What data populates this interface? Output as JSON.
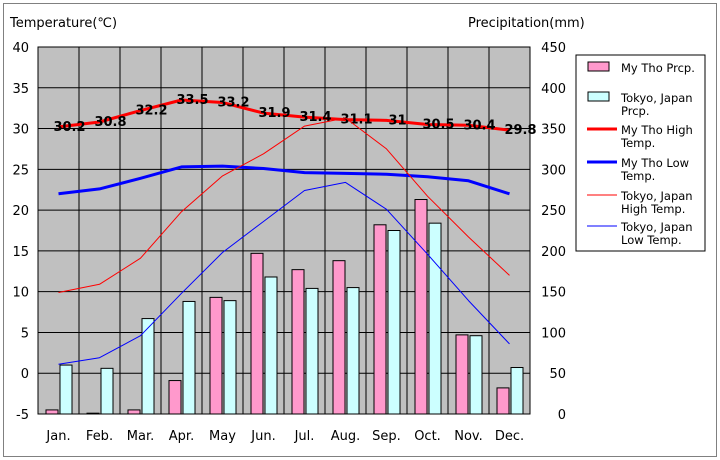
{
  "chart_data": {
    "type": "bar+line",
    "categories": [
      "Jan.",
      "Feb.",
      "Mar.",
      "Apr.",
      "May",
      "Jun.",
      "Jul.",
      "Aug.",
      "Sep.",
      "Oct.",
      "Nov.",
      "Dec."
    ],
    "left_axis": {
      "title": "Temperature(℃)",
      "min": -5,
      "max": 40,
      "step": 5
    },
    "right_axis": {
      "title": "Precipitation(mm)",
      "min": 0,
      "max": 450,
      "step": 50
    },
    "bars": [
      {
        "name": "My Tho Prcp.",
        "color": "#ff99cc",
        "axis": "right",
        "values": [
          5,
          1,
          5,
          41,
          143,
          197,
          177,
          188,
          232,
          263,
          97,
          32
        ]
      },
      {
        "name": "Tokyo, Japan Prcp.",
        "color": "#ccffff",
        "axis": "right",
        "values": [
          60,
          56,
          117,
          138,
          139,
          168,
          154,
          155,
          225,
          234,
          96,
          57
        ]
      }
    ],
    "lines": [
      {
        "name": "My Tho High Temp.",
        "color": "#ff0000",
        "width": 3,
        "axis": "left",
        "values": [
          30.2,
          30.8,
          32.2,
          33.5,
          33.2,
          31.9,
          31.4,
          31.1,
          31,
          30.5,
          30.4,
          29.8
        ],
        "labels": [
          "30.2",
          "30.8",
          "32.2",
          "33.5",
          "33.2",
          "31.9",
          "31.4",
          "31.1",
          "31",
          "30.5",
          "30.4",
          "29.8"
        ]
      },
      {
        "name": "My Tho Low Temp.",
        "color": "#0000ff",
        "width": 3,
        "axis": "left",
        "values": [
          22,
          22.6,
          23.9,
          25.3,
          25.4,
          25.1,
          24.6,
          24.5,
          24.4,
          24.1,
          23.6,
          22
        ]
      },
      {
        "name": "Tokyo, Japan High Temp.",
        "color": "#ff0000",
        "width": 1,
        "axis": "left",
        "values": [
          9.9,
          10.9,
          14.1,
          19.8,
          24.2,
          26.9,
          30.3,
          31.3,
          27.5,
          21.7,
          16.7,
          12
        ]
      },
      {
        "name": "Tokyo, Japan Low Temp.",
        "color": "#0000ff",
        "width": 1,
        "axis": "left",
        "values": [
          1.1,
          1.9,
          4.6,
          9.8,
          14.8,
          18.6,
          22.4,
          23.4,
          20.1,
          14.6,
          8.9,
          3.6
        ]
      }
    ],
    "legend": {
      "position": "right",
      "entries": [
        {
          "key": "swatch",
          "color": "#ff99cc",
          "text": "My Tho Prcp."
        },
        {
          "key": "swatch",
          "color": "#ccffff",
          "text": "Tokyo, Japan Prcp."
        },
        {
          "key": "line",
          "color": "#ff0000",
          "width": 3,
          "text": "My Tho High Temp."
        },
        {
          "key": "line",
          "color": "#0000ff",
          "width": 3,
          "text": "My Tho Low Temp."
        },
        {
          "key": "line",
          "color": "#ff0000",
          "width": 1,
          "text": "Tokyo, Japan High Temp."
        },
        {
          "key": "line",
          "color": "#0000ff",
          "width": 1,
          "text": "Tokyo, Japan Low Temp."
        }
      ]
    },
    "plot_background": "#c0c0c0",
    "grid": true
  }
}
